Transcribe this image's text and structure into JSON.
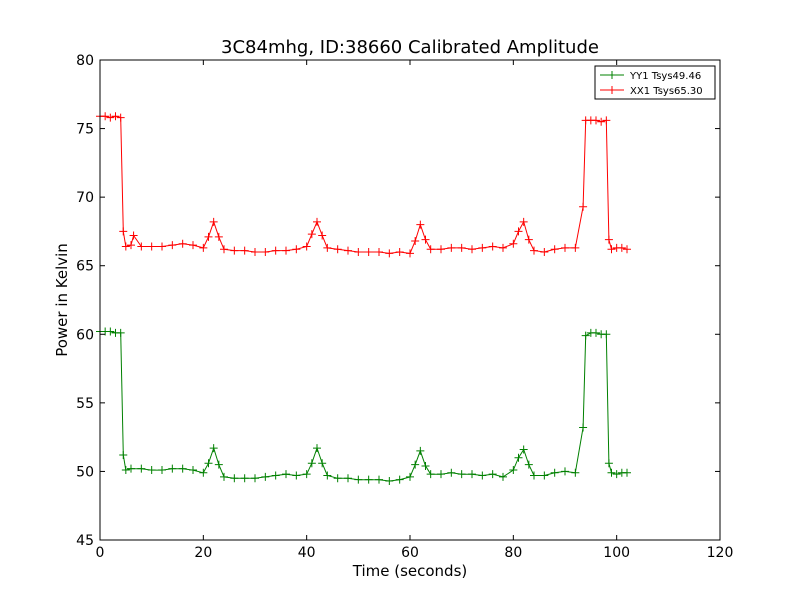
{
  "chart_data": {
    "type": "line",
    "title": "3C84mhg, ID:38660 Calibrated Amplitude",
    "xlabel": "Time (seconds)",
    "ylabel": "Power in Kelvin",
    "xlim": [
      0,
      120
    ],
    "ylim": [
      45,
      80
    ],
    "xticks": [
      0,
      20,
      40,
      60,
      80,
      100,
      120
    ],
    "yticks": [
      45,
      50,
      55,
      60,
      65,
      70,
      75,
      80
    ],
    "grid": false,
    "legend_position": "top-right",
    "marker": "+",
    "series": [
      {
        "name": "YY1 Tsys49.46",
        "color": "#008000",
        "x": [
          0,
          1,
          2,
          3,
          4,
          4.5,
          5,
          6,
          8,
          10,
          12,
          14,
          16,
          18,
          20,
          21,
          22,
          23,
          24,
          26,
          28,
          30,
          32,
          34,
          36,
          38,
          40,
          41,
          42,
          43,
          44,
          46,
          48,
          50,
          52,
          54,
          56,
          58,
          60,
          61,
          62,
          63,
          64,
          66,
          68,
          70,
          72,
          74,
          76,
          78,
          80,
          81,
          82,
          83,
          84,
          86,
          88,
          90,
          92,
          93.5,
          94,
          95,
          96,
          97,
          98,
          98.5,
          99,
          100,
          101,
          102
        ],
        "y": [
          60.2,
          60.2,
          60.2,
          60.1,
          60.1,
          51.2,
          50.1,
          50.2,
          50.2,
          50.1,
          50.1,
          50.2,
          50.2,
          50.1,
          49.9,
          50.6,
          51.7,
          50.5,
          49.6,
          49.5,
          49.5,
          49.5,
          49.6,
          49.7,
          49.8,
          49.7,
          49.8,
          50.6,
          51.7,
          50.6,
          49.7,
          49.5,
          49.5,
          49.4,
          49.4,
          49.4,
          49.3,
          49.4,
          49.6,
          50.5,
          51.5,
          50.4,
          49.8,
          49.8,
          49.9,
          49.8,
          49.8,
          49.7,
          49.8,
          49.6,
          50.1,
          51.0,
          51.6,
          50.5,
          49.7,
          49.7,
          49.9,
          50.0,
          49.9,
          53.2,
          59.9,
          60.1,
          60.1,
          60.0,
          60.0,
          50.6,
          49.9,
          49.8,
          49.9,
          49.9
        ]
      },
      {
        "name": "XX1 Tsys65.30",
        "color": "#ff0000",
        "x": [
          0,
          1,
          2,
          3,
          4,
          4.5,
          5,
          6,
          6.5,
          8,
          10,
          12,
          14,
          16,
          18,
          20,
          21,
          22,
          23,
          24,
          26,
          28,
          30,
          32,
          34,
          36,
          38,
          40,
          41,
          42,
          43,
          44,
          46,
          48,
          50,
          52,
          54,
          56,
          58,
          60,
          61,
          62,
          63,
          64,
          66,
          68,
          70,
          72,
          74,
          76,
          78,
          80,
          81,
          82,
          83,
          84,
          86,
          88,
          90,
          92,
          93.5,
          94,
          95,
          96,
          97,
          98,
          98.5,
          99,
          100,
          101,
          102
        ],
        "y": [
          75.9,
          75.9,
          75.8,
          75.9,
          75.8,
          67.5,
          66.4,
          66.5,
          67.2,
          66.4,
          66.4,
          66.4,
          66.5,
          66.6,
          66.5,
          66.3,
          67.1,
          68.2,
          67.1,
          66.2,
          66.1,
          66.1,
          66.0,
          66.0,
          66.1,
          66.1,
          66.2,
          66.4,
          67.3,
          68.2,
          67.2,
          66.3,
          66.2,
          66.1,
          66.0,
          66.0,
          66.0,
          65.9,
          66.0,
          65.9,
          66.8,
          68.0,
          66.9,
          66.2,
          66.2,
          66.3,
          66.3,
          66.2,
          66.3,
          66.4,
          66.3,
          66.6,
          67.5,
          68.2,
          66.9,
          66.1,
          66.0,
          66.2,
          66.3,
          66.3,
          69.3,
          75.6,
          75.6,
          75.6,
          75.5,
          75.6,
          66.9,
          66.2,
          66.3,
          66.3,
          66.2
        ]
      }
    ]
  }
}
